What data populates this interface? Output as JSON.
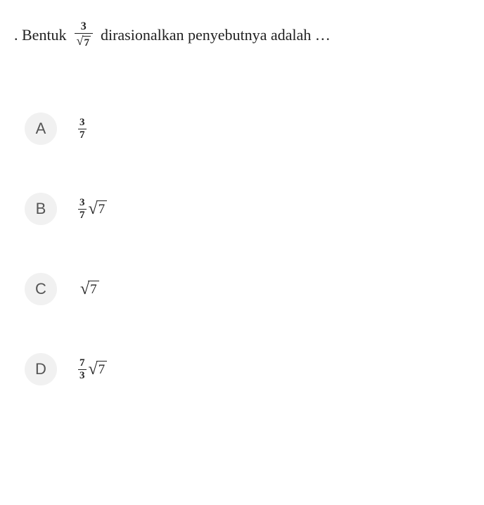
{
  "question": {
    "prefix": ". Bentuk",
    "suffix": "dirasionalkan penyebutnya adalah …",
    "fraction": {
      "numerator": "3",
      "denominator_radicand": "7"
    },
    "text_color": "#222222",
    "font_size": 22
  },
  "options": [
    {
      "letter": "A",
      "type": "fraction",
      "numerator": "3",
      "denominator": "7"
    },
    {
      "letter": "B",
      "type": "fraction_sqrt",
      "numerator": "3",
      "denominator": "7",
      "radicand": "7"
    },
    {
      "letter": "C",
      "type": "sqrt",
      "radicand": "7"
    },
    {
      "letter": "D",
      "type": "fraction_sqrt",
      "numerator": "7",
      "denominator": "3",
      "radicand": "7"
    }
  ],
  "styling": {
    "background_color": "#ffffff",
    "option_circle_bg": "#f1f1f1",
    "option_circle_text": "#555555",
    "option_circle_size": 46,
    "option_letter_fontsize": 22,
    "option_spacing": 68,
    "fraction_fontsize": 15,
    "sqrt_fontsize": 19
  }
}
